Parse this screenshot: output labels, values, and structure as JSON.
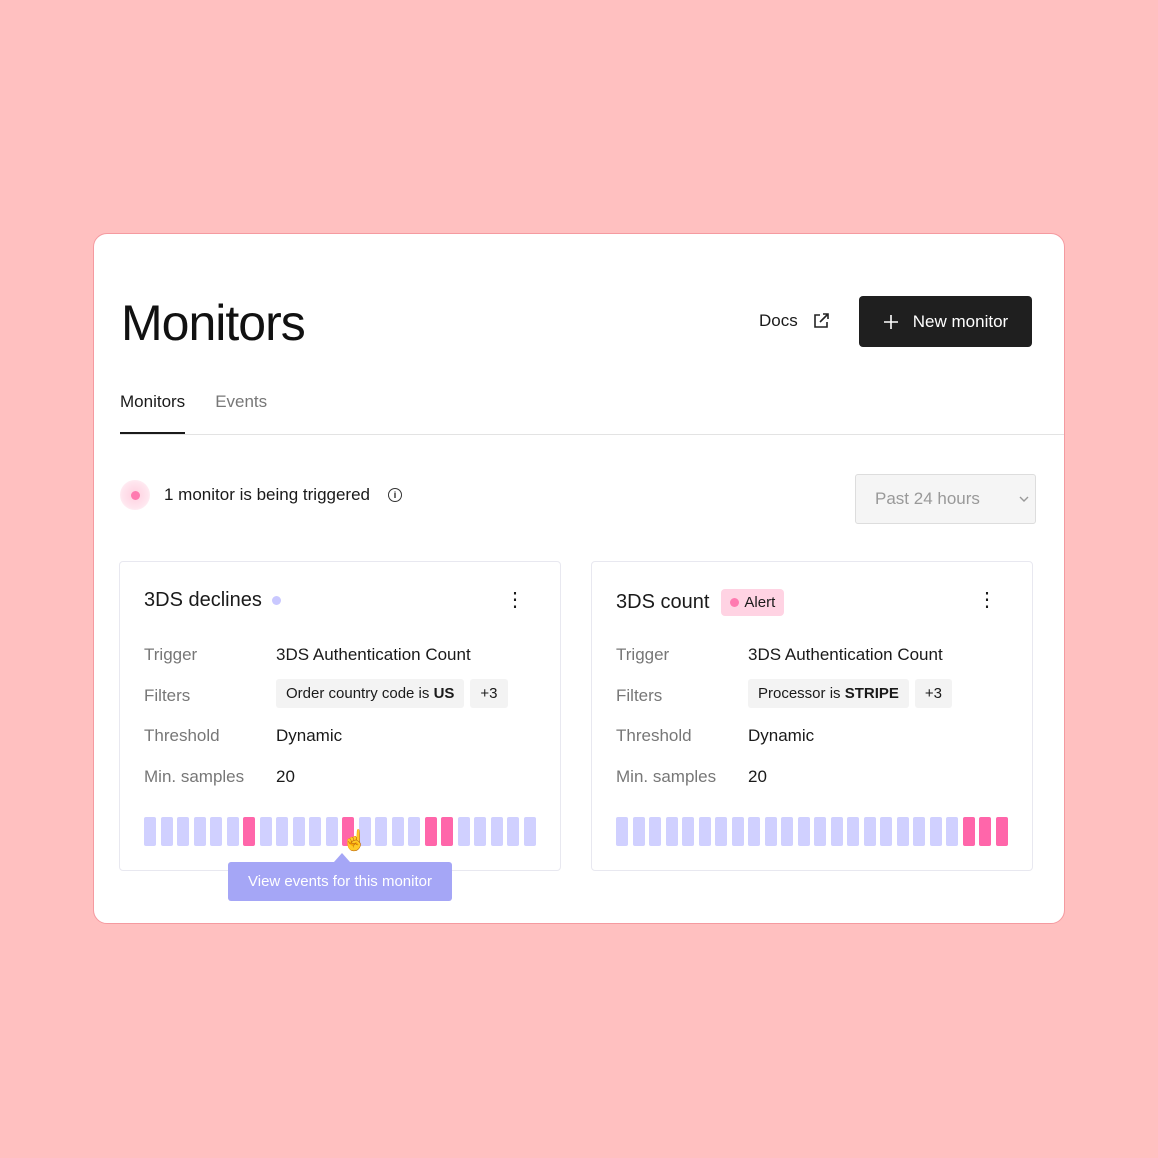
{
  "header": {
    "title": "Monitors",
    "docs_label": "Docs",
    "new_monitor_label": "New monitor"
  },
  "tabs": [
    {
      "label": "Monitors",
      "active": true
    },
    {
      "label": "Events",
      "active": false
    }
  ],
  "status": {
    "text": "1 monitor is being triggered"
  },
  "time_range": {
    "selected": "Past 24 hours"
  },
  "colors": {
    "accent": "#1f1f1f",
    "alert": "#ff66aa",
    "ok": "#d0d0ff",
    "background": "#ffc0c0"
  },
  "monitors": [
    {
      "name": "3DS declines",
      "badge": null,
      "labels": {
        "trigger": "Trigger",
        "filters": "Filters",
        "threshold": "Threshold",
        "min_samples": "Min. samples"
      },
      "trigger": "3DS Authentication Count",
      "filter_prefix": "Order country code is ",
      "filter_value": "US",
      "filter_more": "+3",
      "threshold": "Dynamic",
      "min_samples": "20",
      "bars": [
        0,
        0,
        0,
        0,
        0,
        0,
        1,
        0,
        0,
        0,
        0,
        0,
        1,
        0,
        0,
        0,
        0,
        1,
        1,
        0,
        0,
        0,
        0,
        0
      ]
    },
    {
      "name": "3DS count",
      "badge": "Alert",
      "labels": {
        "trigger": "Trigger",
        "filters": "Filters",
        "threshold": "Threshold",
        "min_samples": "Min. samples"
      },
      "trigger": "3DS Authentication Count",
      "filter_prefix": "Processor is ",
      "filter_value": "STRIPE",
      "filter_more": "+3",
      "threshold": "Dynamic",
      "min_samples": "20",
      "bars": [
        0,
        0,
        0,
        0,
        0,
        0,
        0,
        0,
        0,
        0,
        0,
        0,
        0,
        0,
        0,
        0,
        0,
        0,
        0,
        0,
        0,
        1,
        1,
        1
      ]
    }
  ],
  "tooltip": {
    "text": "View events for this monitor"
  }
}
